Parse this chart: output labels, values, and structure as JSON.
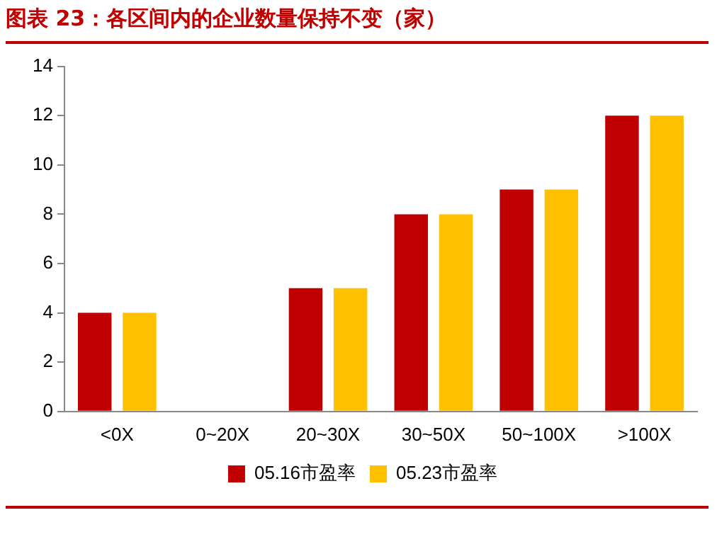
{
  "chart_data": {
    "type": "bar",
    "title": "图表 23：各区间内的企业数量保持不变（家）",
    "categories": [
      "<0X",
      "0~20X",
      "20~30X",
      "30~50X",
      "50~100X",
      ">100X"
    ],
    "series": [
      {
        "name": "05.16市盈率",
        "color": "#c00000",
        "values": [
          4,
          0,
          5,
          8,
          9,
          12
        ]
      },
      {
        "name": "05.23市盈率",
        "color": "#ffc000",
        "values": [
          4,
          0,
          5,
          8,
          9,
          12
        ]
      }
    ],
    "ylim": [
      0,
      14
    ],
    "yticks": [
      0,
      2,
      4,
      6,
      8,
      10,
      12,
      14
    ],
    "grid": false,
    "legend": "bottom"
  }
}
